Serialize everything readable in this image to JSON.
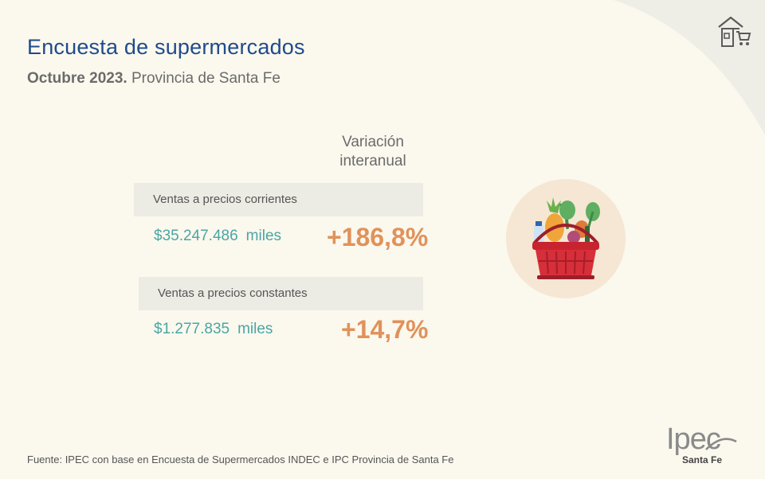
{
  "header": {
    "title": "Encuesta de supermercados",
    "subtitle_bold": "Octubre 2023.",
    "subtitle_rest": "Provincia de Santa Fe"
  },
  "column_header": {
    "line1": "Variación",
    "line2": "interanual"
  },
  "rows": [
    {
      "label": "Ventas a precios corrientes",
      "amount": "$35.247.486",
      "unit": "miles",
      "change": "+186,8%"
    },
    {
      "label": "Ventas a precios constantes",
      "amount": "$1.277.835",
      "unit": "miles",
      "change": "+14,7%"
    }
  ],
  "footer": {
    "source": "Fuente: IPEC con base en Encuesta de Supermercados INDEC e IPC Provincia de Santa Fe"
  },
  "logo": {
    "word": "Ipec",
    "sub": "Santa Fe"
  },
  "icons": {
    "top_right": "store-cart-icon",
    "illustration": "grocery-basket-icon"
  },
  "colors": {
    "background": "#fbf8ee",
    "title": "#1f4b8c",
    "amount": "#4aa6a4",
    "change": "#e0925a",
    "row_band": "#ecebe4",
    "circle": "#f5e7d3"
  }
}
